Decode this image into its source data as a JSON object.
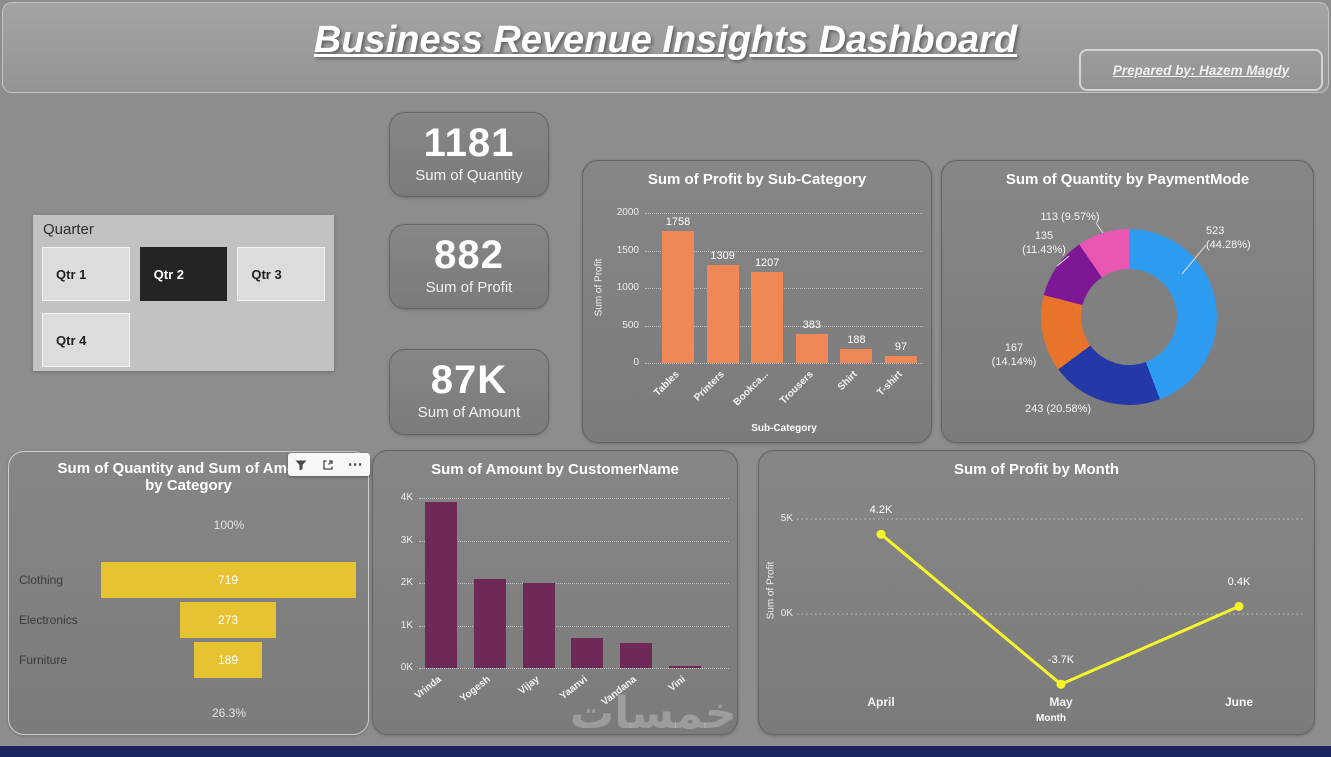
{
  "header": {
    "title": "Business Revenue Insights Dashboard",
    "prepared_by": "Prepared by: Hazem Magdy"
  },
  "slicer": {
    "title": "Quarter",
    "options": [
      {
        "label": "Qtr 1",
        "selected": false
      },
      {
        "label": "Qtr 2",
        "selected": true
      },
      {
        "label": "Qtr 3",
        "selected": false
      },
      {
        "label": "Qtr 4",
        "selected": false
      }
    ]
  },
  "kpis": [
    {
      "value": "1181",
      "label": "Sum of Quantity"
    },
    {
      "value": "882",
      "label": "Sum of Profit"
    },
    {
      "value": "87K",
      "label": "Sum of Amount"
    }
  ],
  "funnel_toolbar": {
    "icons": {
      "filter": "filter-icon",
      "focus_mode": "focus-mode-icon",
      "more_options": "more-options-icon"
    },
    "more_options_glyph": "⋯"
  },
  "watermark": "خمسات",
  "colors": {
    "background": "#8d8d8d",
    "footer_bar": "#1b2660",
    "slicer_selected": "#252423"
  },
  "chart_data": [
    {
      "id": "profit_by_subcategory",
      "type": "bar",
      "title": "Sum of Profit by Sub-Category",
      "categories": [
        "Tables",
        "Printers",
        "Bookca...",
        "Trousers",
        "Shirt",
        "T-shirt"
      ],
      "values": [
        1758,
        1309,
        1207,
        383,
        188,
        97
      ],
      "data_labels": [
        "1758",
        "1309",
        "1207",
        "383",
        "188",
        "97"
      ],
      "xlabel": "Sub-Category",
      "ylabel": "Sum of Profit",
      "ylim": [
        0,
        2000
      ],
      "yticks": [
        "2000",
        "1500",
        "1000",
        "500",
        "0"
      ],
      "grid": "dotted",
      "legend": "none",
      "bar_color": "#f08756"
    },
    {
      "id": "quantity_by_paymentmode",
      "type": "donut",
      "title": "Sum of Quantity by PaymentMode",
      "slices": [
        {
          "value": 523,
          "pct": 44.28,
          "label": "523\n(44.28%)",
          "color": "#2d9bf0"
        },
        {
          "value": 243,
          "pct": 20.58,
          "label": "243 (20.58%)",
          "color": "#2438a8"
        },
        {
          "value": 167,
          "pct": 14.14,
          "label": "167\n(14.14%)",
          "color": "#e8732a"
        },
        {
          "value": 135,
          "pct": 11.43,
          "label": "135\n(11.43%)",
          "color": "#7d1796"
        },
        {
          "value": 113,
          "pct": 9.57,
          "label": "113 (9.57%)",
          "color": "#e957b2"
        }
      ]
    },
    {
      "id": "quantity_amount_by_category",
      "type": "funnel",
      "title": "Sum of Quantity and Sum of Amount by Category",
      "categories": [
        "Clothing",
        "Electronics",
        "Furniture"
      ],
      "values": [
        719,
        273,
        189
      ],
      "top_label": "100%",
      "bottom_label": "26.3%",
      "bar_color": "#e7c233"
    },
    {
      "id": "amount_by_customer",
      "type": "bar",
      "title": "Sum of Amount by CustomerName",
      "categories": [
        "Vrinda",
        "Yogesh",
        "Vijay",
        "Yaanvi",
        "Vandana",
        "Vini"
      ],
      "values": [
        3.9,
        2.1,
        2.0,
        0.7,
        0.6,
        0.05
      ],
      "unit": "K",
      "ylim": [
        0,
        4
      ],
      "yticks": [
        "4K",
        "3K",
        "2K",
        "1K",
        "0K"
      ],
      "grid": "dotted",
      "legend": "none",
      "bar_color": "#6e2957"
    },
    {
      "id": "profit_by_month",
      "type": "line",
      "title": "Sum of Profit by Month",
      "categories": [
        "April",
        "May",
        "June"
      ],
      "values": [
        4.2,
        -3.7,
        0.4
      ],
      "data_labels": [
        "4.2K",
        "-3.7K",
        "0.4K"
      ],
      "xlabel": "Month",
      "ylabel": "Sum of Profit",
      "ylim": [
        -5,
        5
      ],
      "yticks": [
        {
          "label": "5K",
          "value": 5
        },
        {
          "label": "0K",
          "value": 0
        }
      ],
      "grid": "dotted",
      "line_color": "#f6f62b"
    }
  ]
}
